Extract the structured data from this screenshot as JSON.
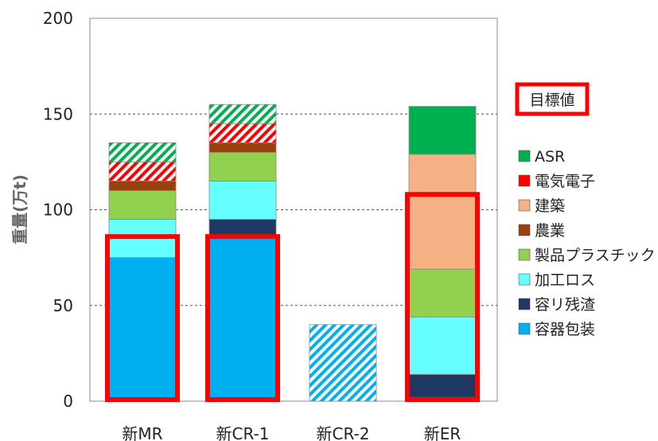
{
  "chart_data": {
    "type": "bar",
    "stacked": true,
    "ylabel": "重量(万t)",
    "ylim": [
      0,
      200
    ],
    "yticks": [
      "0",
      "50",
      "100",
      "150",
      "200"
    ],
    "grid": "dashed horizontal at 50, 100, 150",
    "categories": [
      "新MR",
      "新CR-1",
      "新CR-2",
      "新ER"
    ],
    "series": [
      {
        "name": "容器包装",
        "color": "#00b0f0",
        "values": [
          75,
          85,
          0,
          2
        ]
      },
      {
        "name": "容リ残渣",
        "color": "#1f3864",
        "values": [
          0,
          10,
          0,
          12
        ]
      },
      {
        "name": "加工ロス",
        "color": "#66ffff",
        "values": [
          20,
          20,
          0,
          30
        ]
      },
      {
        "name": "製品プラスチック",
        "color": "#92d050",
        "values": [
          15,
          15,
          0,
          25
        ]
      },
      {
        "name": "農業",
        "color": "#99400f",
        "values": [
          5,
          5,
          0,
          0
        ]
      },
      {
        "name": "建築",
        "color": "#f4b183",
        "values": [
          0,
          0,
          0,
          60
        ]
      },
      {
        "name": "電気電子",
        "color": "#ff0000",
        "values": [
          10,
          10,
          0,
          0
        ]
      },
      {
        "name": "ASR",
        "color": "#00b050",
        "values": [
          10,
          10,
          0,
          25
        ]
      }
    ],
    "hatched_segments": [
      {
        "category": "新MR",
        "series": "電気電子"
      },
      {
        "category": "新MR",
        "series": "ASR"
      },
      {
        "category": "新CR-1",
        "series": "電気電子"
      },
      {
        "category": "新CR-1",
        "series": "ASR"
      },
      {
        "category": "新CR-2",
        "series": "容器包装",
        "value": 40
      }
    ],
    "target_label": "目標値",
    "targets": [
      {
        "category": "新MR",
        "value": 86
      },
      {
        "category": "新CR-1",
        "value": 86
      },
      {
        "category": "新ER",
        "value": 108
      }
    ],
    "legend_order": [
      "ASR",
      "電気電子",
      "建築",
      "農業",
      "製品プラスチック",
      "加工ロス",
      "容リ残渣",
      "容器包装"
    ],
    "legend_position": "right"
  }
}
